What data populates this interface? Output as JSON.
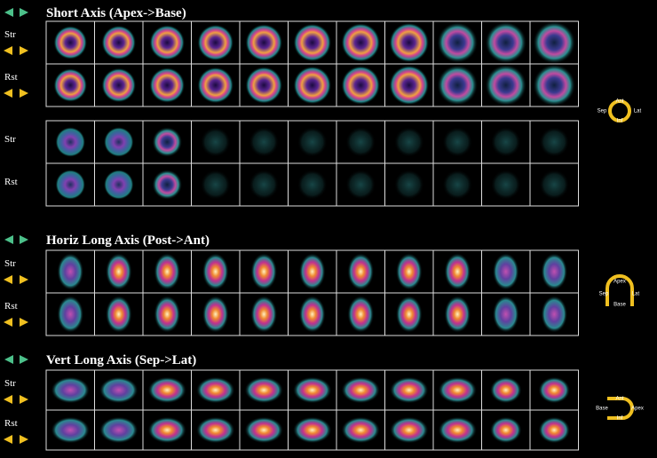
{
  "sections": [
    {
      "title": "Short Axis (Apex->Base)",
      "panels": [
        {
          "rows": [
            {
              "label": "Str"
            },
            {
              "label": "Rst"
            }
          ]
        },
        {
          "rows": [
            {
              "label": "Str"
            },
            {
              "label": "Rst"
            }
          ]
        }
      ]
    },
    {
      "title": "Horiz Long Axis (Post->Ant)",
      "panels": [
        {
          "rows": [
            {
              "label": "Str"
            },
            {
              "label": "Rst"
            }
          ]
        }
      ]
    },
    {
      "title": "Vert Long Axis (Sep->Lat)",
      "panels": [
        {
          "rows": [
            {
              "label": "Str"
            },
            {
              "label": "Rst"
            }
          ]
        }
      ]
    }
  ],
  "orientation_keys": [
    {
      "top": "Ant",
      "left": "Sep",
      "right": "Lat",
      "bottom": "Inf"
    },
    {
      "top": "Apex",
      "left": "Sep",
      "right": "Lat",
      "bottom": "Base"
    },
    {
      "top": "Ant",
      "left": "Base",
      "right": "Apex",
      "bottom": "Inf"
    }
  ]
}
